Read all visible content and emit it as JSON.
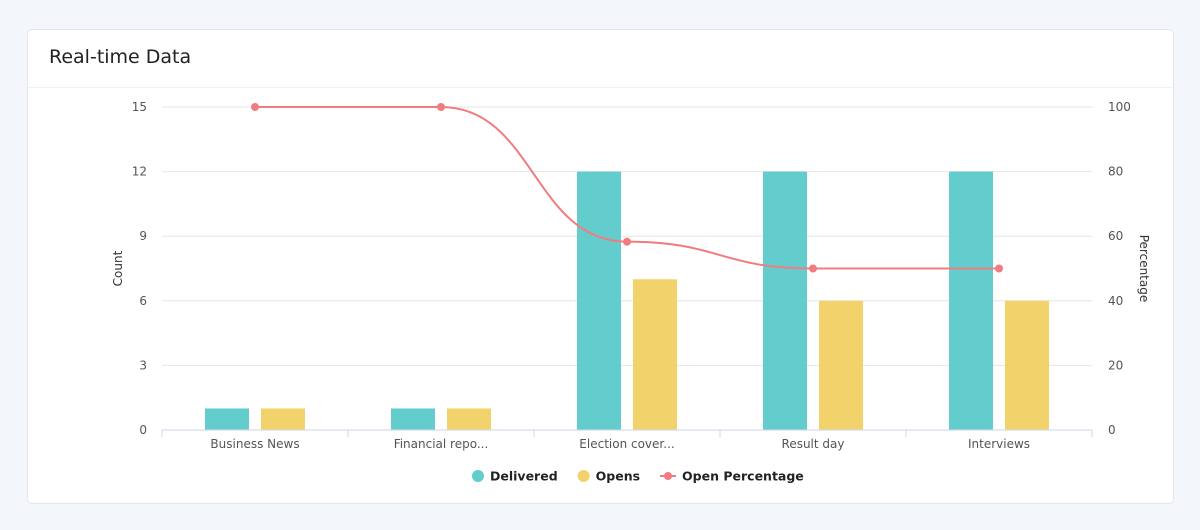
{
  "header": {
    "title": "Real-time Data"
  },
  "chart_data": {
    "type": "bar",
    "categories": [
      "Business News",
      "Financial repo...",
      "Election cover...",
      "Result day",
      "Interviews"
    ],
    "series": [
      {
        "name": "Delivered",
        "type": "bar",
        "axis": "left",
        "color": "#63cccc",
        "values": [
          1,
          1,
          12,
          12,
          12
        ]
      },
      {
        "name": "Opens",
        "type": "bar",
        "axis": "left",
        "color": "#f2d36b",
        "values": [
          1,
          1,
          7,
          6,
          6
        ]
      },
      {
        "name": "Open Percentage",
        "type": "line",
        "axis": "right",
        "color": "#f07c80",
        "values": [
          100,
          100,
          58.3,
          50,
          50
        ]
      }
    ],
    "ylabel": "Count",
    "ylim": [
      0,
      15
    ],
    "yticks": [
      0,
      3,
      6,
      9,
      12,
      15
    ],
    "y2label": "Percentage",
    "y2lim": [
      0,
      100
    ],
    "y2ticks": [
      0,
      20,
      40,
      60,
      80,
      100
    ],
    "grid": true,
    "legend_position": "bottom-center"
  }
}
